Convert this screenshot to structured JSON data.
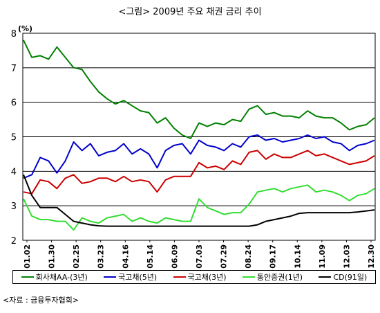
{
  "chart_data": {
    "type": "line",
    "title": "<그림> 2009년 주요 채권 금리 추이",
    "ylabel": "(%)",
    "ylim": [
      2,
      8
    ],
    "yticks": [
      "2",
      "3",
      "4",
      "5",
      "6",
      "7",
      "8"
    ],
    "xtick_labels": [
      "01.02",
      "01.30",
      "02.25",
      "03.23",
      "04.16",
      "05.14",
      "06.09",
      "07.03",
      "07.29",
      "08.24",
      "09.17",
      "10.14",
      "11.09",
      "12.03",
      "12.30"
    ],
    "grid": true,
    "legend_position": "bottom",
    "series": [
      {
        "name": "회사채AA-(3년)",
        "color": "#008000",
        "values": [
          7.8,
          7.3,
          7.35,
          7.25,
          7.6,
          7.3,
          7.0,
          6.95,
          6.6,
          6.3,
          6.1,
          5.95,
          6.05,
          5.9,
          5.75,
          5.7,
          5.4,
          5.55,
          5.25,
          5.05,
          4.95,
          5.4,
          5.3,
          5.4,
          5.35,
          5.5,
          5.45,
          5.8,
          5.9,
          5.65,
          5.7,
          5.6,
          5.6,
          5.55,
          5.75,
          5.6,
          5.55,
          5.55,
          5.4,
          5.2,
          5.3,
          5.35,
          5.55
        ]
      },
      {
        "name": "국고채(5년)",
        "color": "#0000cc",
        "values": [
          3.8,
          3.9,
          4.4,
          4.3,
          3.95,
          4.3,
          4.85,
          4.6,
          4.8,
          4.45,
          4.55,
          4.6,
          4.8,
          4.5,
          4.65,
          4.5,
          4.1,
          4.6,
          4.75,
          4.8,
          4.5,
          4.9,
          4.75,
          4.7,
          4.6,
          4.8,
          4.7,
          5.0,
          5.05,
          4.9,
          4.95,
          4.85,
          4.9,
          4.95,
          5.05,
          4.95,
          5.0,
          4.85,
          4.8,
          4.6,
          4.75,
          4.8,
          4.9
        ]
      },
      {
        "name": "국고채(3년)",
        "color": "#cc0000",
        "values": [
          3.4,
          3.35,
          3.75,
          3.7,
          3.5,
          3.8,
          3.9,
          3.65,
          3.7,
          3.8,
          3.8,
          3.7,
          3.85,
          3.7,
          3.75,
          3.7,
          3.4,
          3.75,
          3.85,
          3.85,
          3.85,
          4.25,
          4.1,
          4.15,
          4.05,
          4.3,
          4.2,
          4.55,
          4.6,
          4.35,
          4.5,
          4.4,
          4.4,
          4.5,
          4.6,
          4.45,
          4.5,
          4.4,
          4.3,
          4.2,
          4.25,
          4.3,
          4.45
        ]
      },
      {
        "name": "통안증권(1년)",
        "color": "#33dd33",
        "values": [
          3.2,
          2.7,
          2.6,
          2.6,
          2.55,
          2.55,
          2.3,
          2.65,
          2.55,
          2.5,
          2.65,
          2.7,
          2.75,
          2.55,
          2.65,
          2.55,
          2.5,
          2.65,
          2.6,
          2.55,
          2.55,
          3.2,
          2.95,
          2.85,
          2.75,
          2.8,
          2.8,
          3.05,
          3.4,
          3.45,
          3.5,
          3.4,
          3.5,
          3.55,
          3.6,
          3.4,
          3.45,
          3.4,
          3.3,
          3.15,
          3.3,
          3.35,
          3.5
        ]
      },
      {
        "name": "CD(91일)",
        "color": "#000000",
        "values": [
          3.9,
          3.3,
          2.95,
          2.95,
          2.95,
          2.75,
          2.55,
          2.5,
          2.45,
          2.42,
          2.41,
          2.41,
          2.41,
          2.41,
          2.41,
          2.41,
          2.41,
          2.41,
          2.41,
          2.41,
          2.41,
          2.41,
          2.41,
          2.41,
          2.41,
          2.41,
          2.41,
          2.41,
          2.45,
          2.55,
          2.6,
          2.65,
          2.7,
          2.78,
          2.8,
          2.8,
          2.8,
          2.8,
          2.8,
          2.8,
          2.82,
          2.85,
          2.88
        ]
      }
    ]
  },
  "source": "<자료 : 금융투자협회>"
}
